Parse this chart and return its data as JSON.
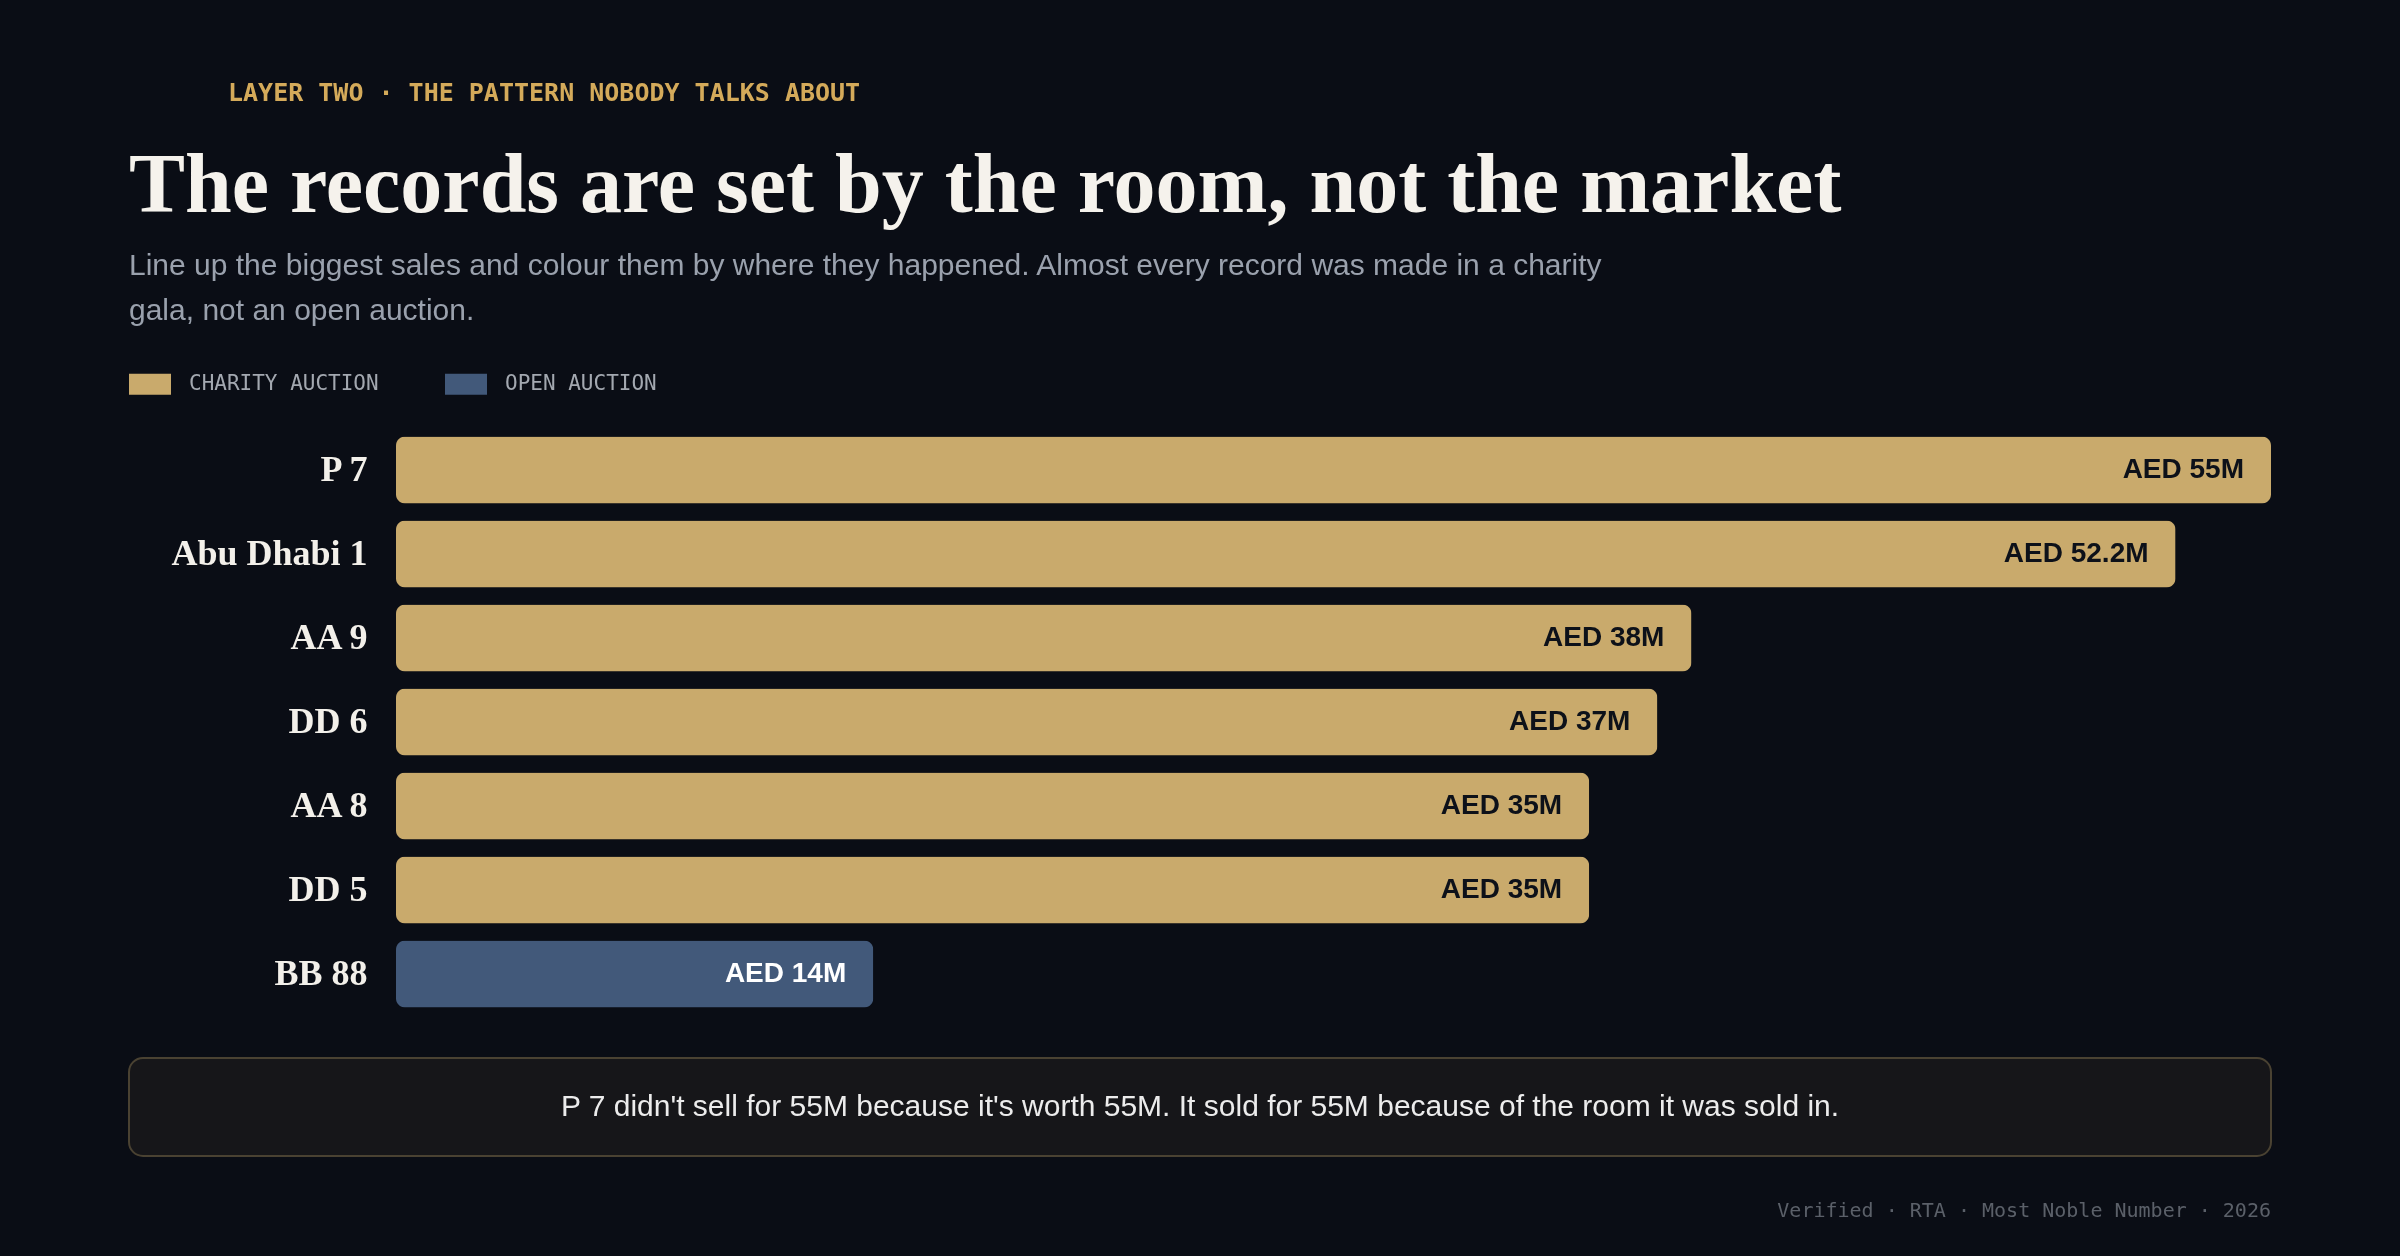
{
  "chart_data": {
    "type": "bar",
    "orientation": "horizontal",
    "title": "The records are set by the room, not the market",
    "subtitle": "Line up the biggest sales and colour them by where they happened. Almost every record was made in a charity gala, not an open auction.",
    "categories": [
      "P 7",
      "Abu Dhabi 1",
      "AA 9",
      "DD 6",
      "AA 8",
      "DD 5",
      "BB 88"
    ],
    "series": [
      {
        "name": "CHARITY AUCTION",
        "color": "#c9aa6c",
        "values": [
          55000000,
          52200000,
          38000000,
          37000000,
          35000000,
          35000000,
          null
        ],
        "value_labels": [
          "AED 55M",
          "AED 52.2M",
          "AED 38M",
          "AED 37M",
          "AED 35M",
          "AED 35M",
          null
        ]
      },
      {
        "name": "OPEN AUCTION",
        "color": "#42597a",
        "values": [
          null,
          null,
          null,
          null,
          null,
          null,
          14000000
        ],
        "value_labels": [
          null,
          null,
          null,
          null,
          null,
          null,
          "AED 14M"
        ]
      }
    ],
    "data_labels": true,
    "legend": "top left",
    "grid": false,
    "tick_labels": "y",
    "annotations": [
      "LAYER TWO · THE PATTERN NOBODY TALKS ABOUT",
      "P 7 didn't sell for 55M because it's worth 55M. It sold for 55M because of the room it was sold in.",
      "Verified · RTA · Most Noble Number · 2026"
    ]
  }
}
